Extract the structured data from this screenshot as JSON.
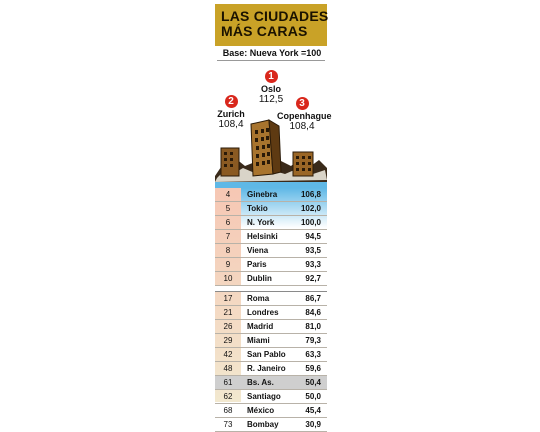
{
  "header": {
    "title_line1": "LAS CIUDADES",
    "title_line2": "MÁS CARAS",
    "subtitle": "Base: Nueva York =100"
  },
  "colors": {
    "title_bg": "#c9a227",
    "badge": "#d9271c",
    "rank_col_top": "#f6c7b4",
    "rank_col_bottom": "#f2e8cf",
    "blue_water": "#5fb8e6",
    "highlight": "#cfcfcf"
  },
  "chart_data": {
    "type": "table",
    "title": "LAS CIUDADES MÁS CARAS",
    "subtitle": "Base: Nueva York =100",
    "top3": [
      {
        "rank": "1",
        "city": "Oslo",
        "value": "112,5"
      },
      {
        "rank": "2",
        "city": "Zurich",
        "value": "108,4"
      },
      {
        "rank": "3",
        "city": "Copenhague",
        "value": "108,4"
      }
    ],
    "group1": [
      {
        "rank": "4",
        "city": "Ginebra",
        "value": "106,8"
      },
      {
        "rank": "5",
        "city": "Tokio",
        "value": "102,0"
      },
      {
        "rank": "6",
        "city": "N. York",
        "value": "100,0"
      },
      {
        "rank": "7",
        "city": "Helsinki",
        "value": "94,5"
      },
      {
        "rank": "8",
        "city": "Viena",
        "value": "93,5"
      },
      {
        "rank": "9",
        "city": "Paris",
        "value": "93,3"
      },
      {
        "rank": "10",
        "city": "Dublin",
        "value": "92,7"
      }
    ],
    "group2": [
      {
        "rank": "17",
        "city": "Roma",
        "value": "86,7"
      },
      {
        "rank": "21",
        "city": "Londres",
        "value": "84,6"
      },
      {
        "rank": "26",
        "city": "Madrid",
        "value": "81,0"
      },
      {
        "rank": "29",
        "city": "Miami",
        "value": "79,3"
      },
      {
        "rank": "42",
        "city": "San Pablo",
        "value": "63,3"
      },
      {
        "rank": "48",
        "city": "R. Janeiro",
        "value": "59,6"
      },
      {
        "rank": "61",
        "city": "Bs. As.",
        "value": "50,4",
        "highlight": true
      },
      {
        "rank": "62",
        "city": "Santiago",
        "value": "50,0"
      },
      {
        "rank": "68",
        "city": "México",
        "value": "45,4"
      },
      {
        "rank": "73",
        "city": "Bombay",
        "value": "30,9"
      }
    ]
  }
}
